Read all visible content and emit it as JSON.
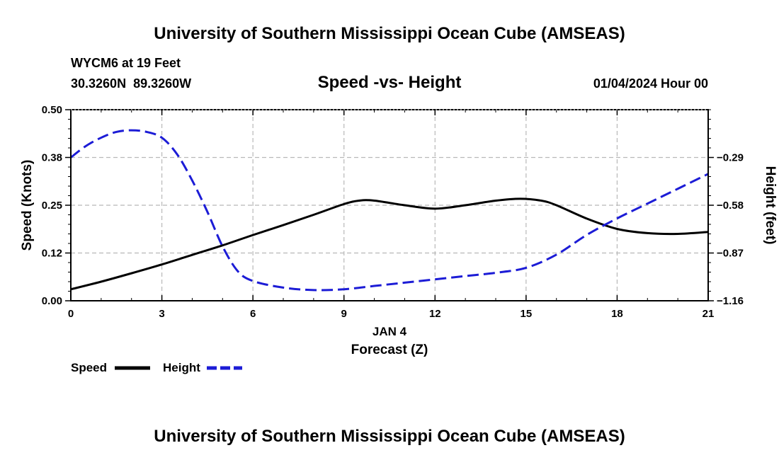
{
  "header": {
    "title": "University of Southern Mississippi Ocean Cube (AMSEAS)",
    "station": "WYCM6 at 19 Feet",
    "coords": "30.3260N  89.3260W",
    "date": "01/04/2024 Hour 00"
  },
  "footer": {
    "title": "University of Southern Mississippi Ocean Cube (AMSEAS)"
  },
  "chart_data": {
    "type": "line",
    "title": "Speed -vs- Height",
    "xlabel": "Forecast (Z)",
    "x_sublabel": "JAN 4",
    "ylabel_left": "Speed (Knots)",
    "ylabel_right": "Height (feet)",
    "xlim": [
      0,
      21
    ],
    "ylim_left": [
      0.0,
      0.5
    ],
    "ylim_right": [
      -1.16,
      -0.0
    ],
    "x_ticks": [
      0,
      3,
      6,
      9,
      12,
      15,
      18,
      21
    ],
    "x_tick_labels": [
      "0",
      "3",
      "6",
      "9",
      "12",
      "15",
      "18",
      "21"
    ],
    "y_left_ticks": [
      0.0,
      0.125,
      0.25,
      0.375,
      0.5
    ],
    "y_left_tick_labels": [
      "0.00",
      "0.12",
      "0.25",
      "0.38",
      "0.50"
    ],
    "y_right_ticks": [
      -1.16,
      -0.87,
      -0.58,
      -0.29
    ],
    "y_right_tick_labels": [
      "−1.16",
      "−0.87",
      "−0.58",
      "−0.29"
    ],
    "grid": true,
    "legend_position": "bottom-left",
    "series": [
      {
        "name": "Speed",
        "axis": "left",
        "color": "#000000",
        "dash": "solid",
        "x": [
          0,
          1,
          2,
          3,
          4,
          5,
          6,
          7,
          8,
          9,
          9.5,
          10,
          11,
          12,
          13,
          14,
          14.8,
          15.5,
          16,
          17,
          18,
          19,
          20,
          21
        ],
        "y": [
          0.03,
          0.05,
          0.072,
          0.095,
          0.12,
          0.145,
          0.172,
          0.198,
          0.225,
          0.253,
          0.262,
          0.262,
          0.25,
          0.241,
          0.25,
          0.262,
          0.267,
          0.262,
          0.25,
          0.215,
          0.188,
          0.177,
          0.175,
          0.18
        ]
      },
      {
        "name": "Height",
        "axis": "right",
        "color": "#1c1cd6",
        "dash": "dashed",
        "x": [
          0,
          0.5,
          1,
          1.5,
          2,
          2.5,
          3,
          3.5,
          4,
          4.5,
          5,
          5.5,
          6,
          7,
          8,
          9,
          10,
          11,
          12,
          13,
          14,
          15,
          16,
          17,
          18,
          19,
          20,
          21
        ],
        "y": [
          -0.29,
          -0.22,
          -0.17,
          -0.135,
          -0.125,
          -0.135,
          -0.17,
          -0.27,
          -0.43,
          -0.62,
          -0.83,
          -0.98,
          -1.04,
          -1.08,
          -1.095,
          -1.09,
          -1.07,
          -1.05,
          -1.03,
          -1.01,
          -0.99,
          -0.96,
          -0.88,
          -0.76,
          -0.66,
          -0.57,
          -0.48,
          -0.39
        ]
      }
    ]
  }
}
